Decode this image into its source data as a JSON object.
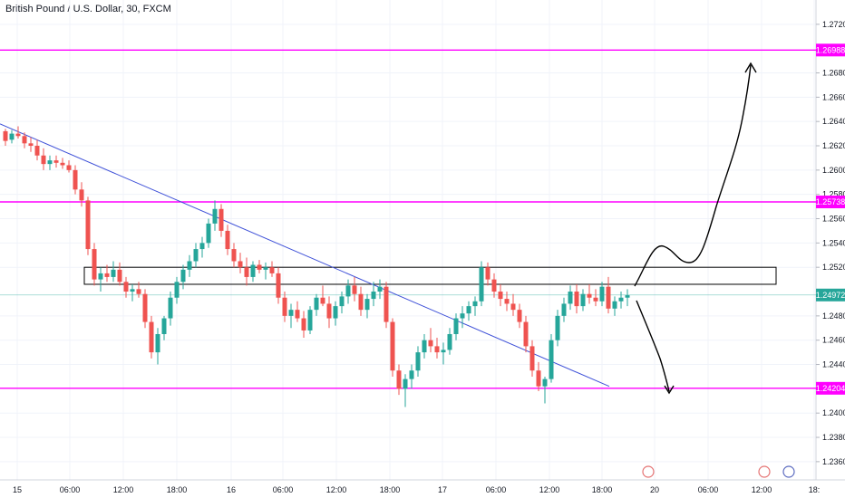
{
  "header": {
    "title": "British Pound / U.S. Dollar, 30, FXCM"
  },
  "colors": {
    "up": "#26a69a",
    "down": "#ef5350",
    "level": "#ff00ff",
    "trend": "#3f51d8",
    "current": "#26a69a",
    "drawing": "#000000"
  },
  "chart_data": {
    "type": "candlestick",
    "title": "British Pound / U.S. Dollar, 30, FXCM",
    "ylim": [
      1.2345,
      1.274
    ],
    "y_ticks": [
      "1.27200",
      "1.26800",
      "1.26600",
      "1.26400",
      "1.26200",
      "1.26000",
      "1.25800",
      "1.25600",
      "1.25400",
      "1.25200",
      "1.24800",
      "1.24600",
      "1.24400",
      "1.24000",
      "1.23800",
      "1.23600"
    ],
    "x_ticks": [
      "15",
      "06:00",
      "12:00",
      "18:00",
      "16",
      "06:00",
      "12:00",
      "18:00",
      "17",
      "06:00",
      "12:00",
      "18:00",
      "20",
      "06:00",
      "12:00",
      "18:"
    ],
    "levels": [
      {
        "label": "1.26988",
        "value": 1.26988
      },
      {
        "label": "1.25738",
        "value": 1.25738
      },
      {
        "label": "1.24972",
        "value": 1.24972
      },
      {
        "label": "1.24204",
        "value": 1.24204
      }
    ],
    "current_price": "1.24972",
    "resistance_box": [
      1.2506,
      1.252
    ],
    "candles": [
      [
        1.2632,
        1.2634,
        1.262,
        1.2624
      ],
      [
        1.2625,
        1.2633,
        1.2622,
        1.263
      ],
      [
        1.263,
        1.2636,
        1.2626,
        1.2628
      ],
      [
        1.2628,
        1.2631,
        1.2618,
        1.2622
      ],
      [
        1.2622,
        1.2627,
        1.2615,
        1.262
      ],
      [
        1.262,
        1.2625,
        1.2608,
        1.2612
      ],
      [
        1.2612,
        1.2618,
        1.26,
        1.2605
      ],
      [
        1.2605,
        1.2612,
        1.26,
        1.2608
      ],
      [
        1.2608,
        1.2612,
        1.2602,
        1.2606
      ],
      [
        1.2606,
        1.261,
        1.2601,
        1.2604
      ],
      [
        1.2604,
        1.2608,
        1.2598,
        1.26
      ],
      [
        1.26,
        1.2604,
        1.258,
        1.2584
      ],
      [
        1.2584,
        1.259,
        1.257,
        1.2575
      ],
      [
        1.2575,
        1.2578,
        1.253,
        1.2535
      ],
      [
        1.2535,
        1.254,
        1.2505,
        1.251
      ],
      [
        1.251,
        1.252,
        1.25,
        1.2515
      ],
      [
        1.2515,
        1.2522,
        1.2508,
        1.2512
      ],
      [
        1.2512,
        1.2525,
        1.2508,
        1.2518
      ],
      [
        1.2518,
        1.2524,
        1.2505,
        1.2508
      ],
      [
        1.2508,
        1.2512,
        1.2495,
        1.25
      ],
      [
        1.25,
        1.2506,
        1.2492,
        1.2502
      ],
      [
        1.2502,
        1.2508,
        1.2495,
        1.2498
      ],
      [
        1.2498,
        1.2502,
        1.247,
        1.2475
      ],
      [
        1.2475,
        1.248,
        1.2445,
        1.245
      ],
      [
        1.245,
        1.247,
        1.244,
        1.2465
      ],
      [
        1.2465,
        1.248,
        1.246,
        1.2478
      ],
      [
        1.2478,
        1.25,
        1.2472,
        1.2495
      ],
      [
        1.2495,
        1.2512,
        1.249,
        1.2508
      ],
      [
        1.2508,
        1.2522,
        1.2502,
        1.2518
      ],
      [
        1.2518,
        1.253,
        1.2512,
        1.2525
      ],
      [
        1.2525,
        1.254,
        1.252,
        1.2535
      ],
      [
        1.2535,
        1.2545,
        1.2528,
        1.254
      ],
      [
        1.254,
        1.256,
        1.2536,
        1.2556
      ],
      [
        1.2556,
        1.2575,
        1.255,
        1.2568
      ],
      [
        1.2568,
        1.2572,
        1.2545,
        1.255
      ],
      [
        1.255,
        1.2555,
        1.253,
        1.2535
      ],
      [
        1.2535,
        1.254,
        1.252,
        1.2525
      ],
      [
        1.2525,
        1.2532,
        1.2515,
        1.252
      ],
      [
        1.252,
        1.2528,
        1.2505,
        1.2512
      ],
      [
        1.2512,
        1.2525,
        1.2508,
        1.2522
      ],
      [
        1.2522,
        1.2526,
        1.2515,
        1.2518
      ],
      [
        1.2518,
        1.2524,
        1.251,
        1.252
      ],
      [
        1.252,
        1.2525,
        1.2512,
        1.2515
      ],
      [
        1.2515,
        1.252,
        1.249,
        1.2495
      ],
      [
        1.2495,
        1.25,
        1.2475,
        1.248
      ],
      [
        1.248,
        1.249,
        1.247,
        1.2485
      ],
      [
        1.2485,
        1.2492,
        1.2475,
        1.2478
      ],
      [
        1.2478,
        1.2484,
        1.2462,
        1.2468
      ],
      [
        1.2468,
        1.2488,
        1.2465,
        1.2485
      ],
      [
        1.2485,
        1.2498,
        1.248,
        1.2495
      ],
      [
        1.2495,
        1.2505,
        1.2488,
        1.249
      ],
      [
        1.249,
        1.2496,
        1.247,
        1.2478
      ],
      [
        1.2478,
        1.2492,
        1.2472,
        1.2488
      ],
      [
        1.2488,
        1.25,
        1.2482,
        1.2496
      ],
      [
        1.2496,
        1.251,
        1.249,
        1.2505
      ],
      [
        1.2505,
        1.2512,
        1.2492,
        1.2498
      ],
      [
        1.2498,
        1.2504,
        1.248,
        1.2485
      ],
      [
        1.2485,
        1.2498,
        1.2478,
        1.2494
      ],
      [
        1.2494,
        1.2508,
        1.2488,
        1.25
      ],
      [
        1.25,
        1.251,
        1.2494,
        1.2504
      ],
      [
        1.2504,
        1.2508,
        1.247,
        1.2475
      ],
      [
        1.2475,
        1.2478,
        1.243,
        1.2435
      ],
      [
        1.2435,
        1.244,
        1.2415,
        1.242
      ],
      [
        1.242,
        1.2432,
        1.2405,
        1.2428
      ],
      [
        1.2428,
        1.244,
        1.242,
        1.2435
      ],
      [
        1.2435,
        1.2455,
        1.243,
        1.245
      ],
      [
        1.245,
        1.2465,
        1.2445,
        1.246
      ],
      [
        1.246,
        1.247,
        1.245,
        1.2455
      ],
      [
        1.2455,
        1.2462,
        1.2445,
        1.245
      ],
      [
        1.245,
        1.2458,
        1.244,
        1.2452
      ],
      [
        1.2452,
        1.247,
        1.2448,
        1.2465
      ],
      [
        1.2465,
        1.2482,
        1.246,
        1.2478
      ],
      [
        1.2478,
        1.2488,
        1.247,
        1.2482
      ],
      [
        1.2482,
        1.2492,
        1.2476,
        1.2488
      ],
      [
        1.2488,
        1.2496,
        1.248,
        1.2492
      ],
      [
        1.2492,
        1.2525,
        1.2488,
        1.252
      ],
      [
        1.252,
        1.2524,
        1.2505,
        1.251
      ],
      [
        1.251,
        1.2515,
        1.2495,
        1.25
      ],
      [
        1.25,
        1.2506,
        1.2488,
        1.2494
      ],
      [
        1.2494,
        1.25,
        1.2484,
        1.249
      ],
      [
        1.249,
        1.2498,
        1.248,
        1.2485
      ],
      [
        1.2485,
        1.249,
        1.247,
        1.2475
      ],
      [
        1.2475,
        1.248,
        1.245,
        1.2455
      ],
      [
        1.2455,
        1.246,
        1.243,
        1.2435
      ],
      [
        1.2435,
        1.2442,
        1.2418,
        1.2422
      ],
      [
        1.2422,
        1.243,
        1.2408,
        1.2428
      ],
      [
        1.2428,
        1.2465,
        1.2425,
        1.246
      ],
      [
        1.246,
        1.2485,
        1.2455,
        1.248
      ],
      [
        1.248,
        1.2495,
        1.2475,
        1.249
      ],
      [
        1.249,
        1.2505,
        1.2485,
        1.25
      ],
      [
        1.25,
        1.2506,
        1.2482,
        1.2488
      ],
      [
        1.2488,
        1.2502,
        1.2484,
        1.2498
      ],
      [
        1.2498,
        1.2506,
        1.249,
        1.2495
      ],
      [
        1.2495,
        1.2502,
        1.2488,
        1.2492
      ],
      [
        1.2492,
        1.2508,
        1.2488,
        1.2504
      ],
      [
        1.2504,
        1.2512,
        1.2482,
        1.2486
      ],
      [
        1.2486,
        1.2496,
        1.248,
        1.2492
      ],
      [
        1.2492,
        1.25,
        1.2486,
        1.2495
      ],
      [
        1.2495,
        1.2502,
        1.2488,
        1.2497
      ]
    ],
    "trendline": {
      "from": [
        0,
        1.2638
      ],
      "to": [
        98,
        1.2422
      ]
    },
    "arrows": [
      "up",
      "down"
    ]
  }
}
